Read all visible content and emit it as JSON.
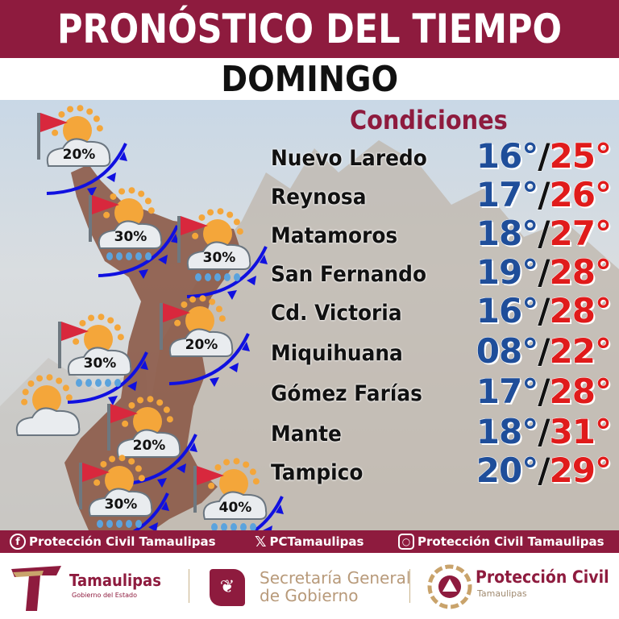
{
  "header": {
    "title": "PRONÓSTICO DEL TIEMPO",
    "day": "DOMINGO"
  },
  "conditions_label": "Condiciones",
  "colors": {
    "brand": "#8e1b3e",
    "min_temp": "#1f4e9a",
    "max_temp": "#e01b1b",
    "front": "#1010e0"
  },
  "forecast": [
    {
      "city": "Nuevo Laredo",
      "min": "16°",
      "max": "25°"
    },
    {
      "city": "Reynosa",
      "min": "17°",
      "max": "26°"
    },
    {
      "city": "Matamoros",
      "min": "18°",
      "max": "27°"
    },
    {
      "city": "San Fernando",
      "min": "19°",
      "max": "28°"
    },
    {
      "city": "Cd. Victoria",
      "min": "16°",
      "max": "28°"
    },
    {
      "city": "Miquihuana",
      "min": "08°",
      "max": "22°"
    },
    {
      "city": "Gómez Farías",
      "min": "17°",
      "max": "28°"
    },
    {
      "city": "Mante",
      "min": "18°",
      "max": "31°"
    },
    {
      "city": "Tampico",
      "min": "20°",
      "max": "29°"
    }
  ],
  "map_icons": [
    {
      "icon": "partly-cloudy-flag-icon",
      "rain_chance": "20%",
      "rain": false
    },
    {
      "icon": "rain-flag-icon",
      "rain_chance": "30%",
      "rain": true
    },
    {
      "icon": "rain-flag-icon",
      "rain_chance": "30%",
      "rain": true
    },
    {
      "icon": "partly-cloudy-flag-icon",
      "rain_chance": "20%",
      "rain": false
    },
    {
      "icon": "rain-flag-icon",
      "rain_chance": "30%",
      "rain": true
    },
    {
      "icon": "partly-cloudy-icon",
      "rain_chance": "",
      "rain": false
    },
    {
      "icon": "partly-cloudy-flag-icon",
      "rain_chance": "20%",
      "rain": false
    },
    {
      "icon": "rain-flag-icon",
      "rain_chance": "30%",
      "rain": true
    },
    {
      "icon": "rain-flag-icon",
      "rain_chance": "40%",
      "rain": true
    }
  ],
  "social": {
    "facebook": "Protección Civil Tamaulipas",
    "x": "PCTamaulipas",
    "instagram": "Protección Civil Tamaulipas"
  },
  "logos": {
    "tamaulipas": "Tamaulipas",
    "tamaulipas_sub": "Gobierno del Estado",
    "sgg_line1": "Secretaría General",
    "sgg_line2": "de Gobierno",
    "pc": "Protección Civil",
    "pc_sub": "Tamaulipas"
  }
}
